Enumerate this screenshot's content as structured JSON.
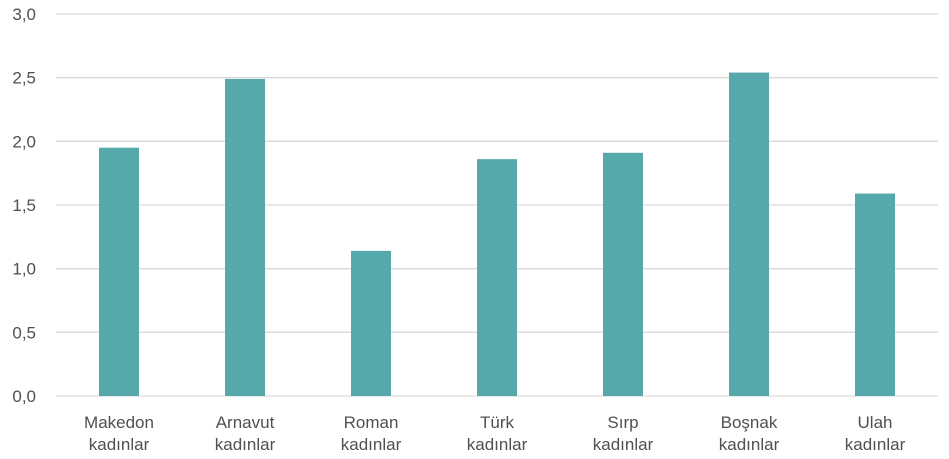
{
  "chart_data": {
    "type": "bar",
    "title": "",
    "xlabel": "",
    "ylabel": "",
    "categories": [
      [
        "Makedon",
        "kadınlar"
      ],
      [
        "Arnavut",
        "kadınlar"
      ],
      [
        "Roman",
        "kadınlar"
      ],
      [
        "Türk",
        "kadınlar"
      ],
      [
        "Sırp",
        "kadınlar"
      ],
      [
        "Boşnak",
        "kadınlar"
      ],
      [
        "Ulah",
        "kadınlar"
      ]
    ],
    "values": [
      1.95,
      2.49,
      1.14,
      1.86,
      1.91,
      2.54,
      1.59
    ],
    "ylim": [
      0,
      3.0
    ],
    "yticks": [
      "0,0",
      "0,5",
      "1,0",
      "1,5",
      "2,0",
      "2,5",
      "3,0"
    ],
    "grid": true,
    "legend": "none",
    "colors": {
      "bar": "#55A9AA",
      "grid": "#D9D9D9",
      "text": "#505050"
    }
  }
}
